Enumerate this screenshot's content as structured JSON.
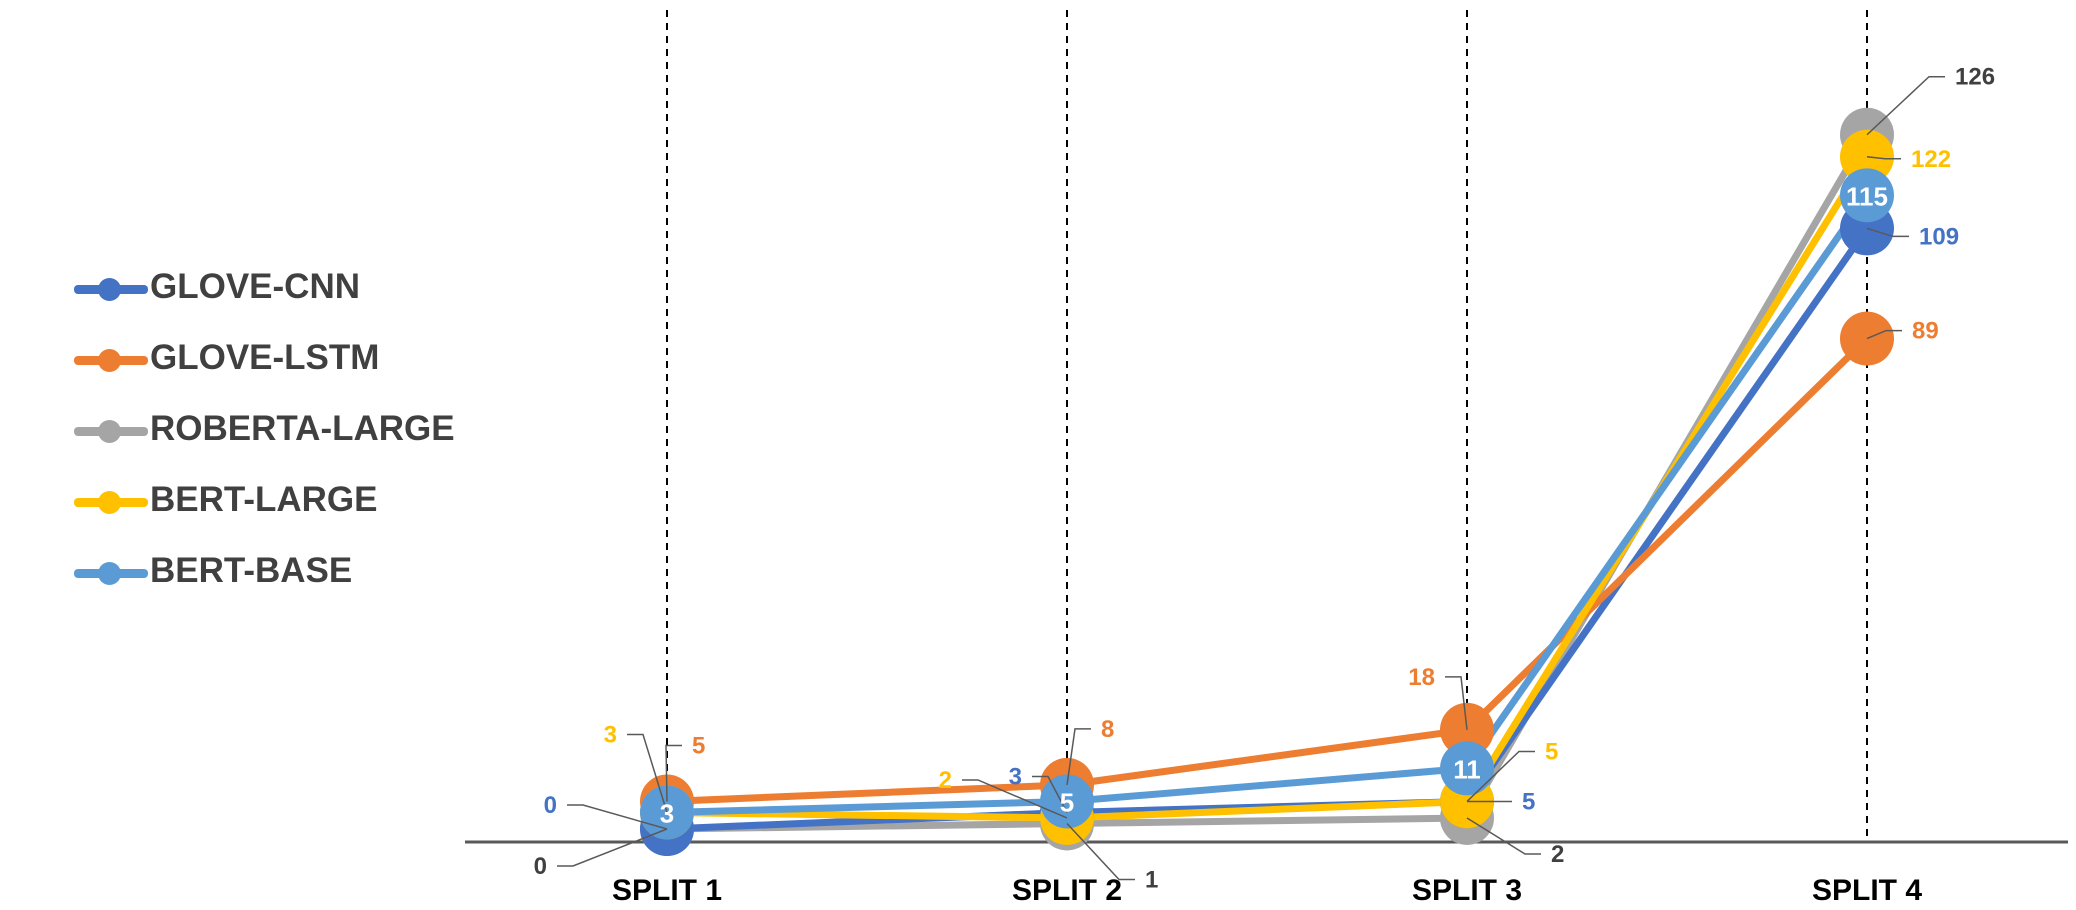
{
  "chart_data": {
    "type": "line",
    "categories": [
      "SPLIT 1",
      "SPLIT 2",
      "SPLIT 3",
      "SPLIT 4"
    ],
    "series": [
      {
        "name": "GLOVE-CNN",
        "color": "#4472C4",
        "values": [
          0,
          3,
          5,
          109
        ]
      },
      {
        "name": "GLOVE-LSTM",
        "color": "#ED7D31",
        "values": [
          5,
          8,
          18,
          89
        ]
      },
      {
        "name": "ROBERTA-LARGE",
        "color": "#A5A5A5",
        "values": [
          0,
          1,
          2,
          126
        ]
      },
      {
        "name": "BERT-LARGE",
        "color": "#FFC000",
        "values": [
          3,
          2,
          5,
          122
        ]
      },
      {
        "name": "BERT-BASE",
        "color": "#5B9BD5",
        "values": [
          3,
          5,
          11,
          115
        ]
      }
    ],
    "ylim": [
      0,
      140
    ],
    "grid": false,
    "legend_position": "left",
    "vertical_dashed_lines": true,
    "data_labels": true
  }
}
